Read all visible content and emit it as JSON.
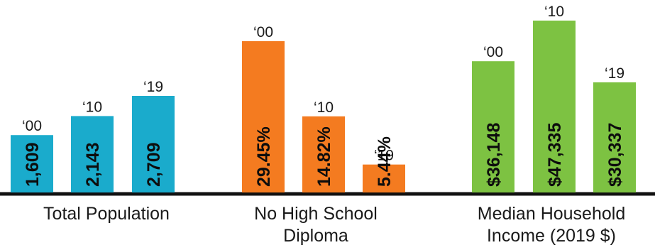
{
  "chart_data": {
    "type": "bar",
    "title": "",
    "xlabel": "",
    "ylabel": "",
    "years": [
      "‘00",
      "‘10",
      "‘19"
    ],
    "groups": [
      {
        "label_lines": [
          "Total Population"
        ],
        "color": "#1aabcc",
        "label_color": "#0d0d0d",
        "values": [
          1609,
          2143,
          2709
        ],
        "display": [
          "1,609",
          "2,143",
          "2,709"
        ]
      },
      {
        "label_lines": [
          "No High School",
          "Diploma"
        ],
        "color": "#f47b20",
        "label_color": "#0d0d0d",
        "values": [
          29.45,
          14.82,
          5.44
        ],
        "display": [
          "29.45%",
          "14.82%",
          "5.44%"
        ]
      },
      {
        "label_lines": [
          "Median Household",
          "Income (2019 $)"
        ],
        "color": "#7dc242",
        "label_color": "#0d0d0d",
        "values": [
          36148,
          47335,
          30337
        ],
        "display": [
          "$36,148",
          "$47,335",
          "$30,337"
        ]
      }
    ]
  }
}
